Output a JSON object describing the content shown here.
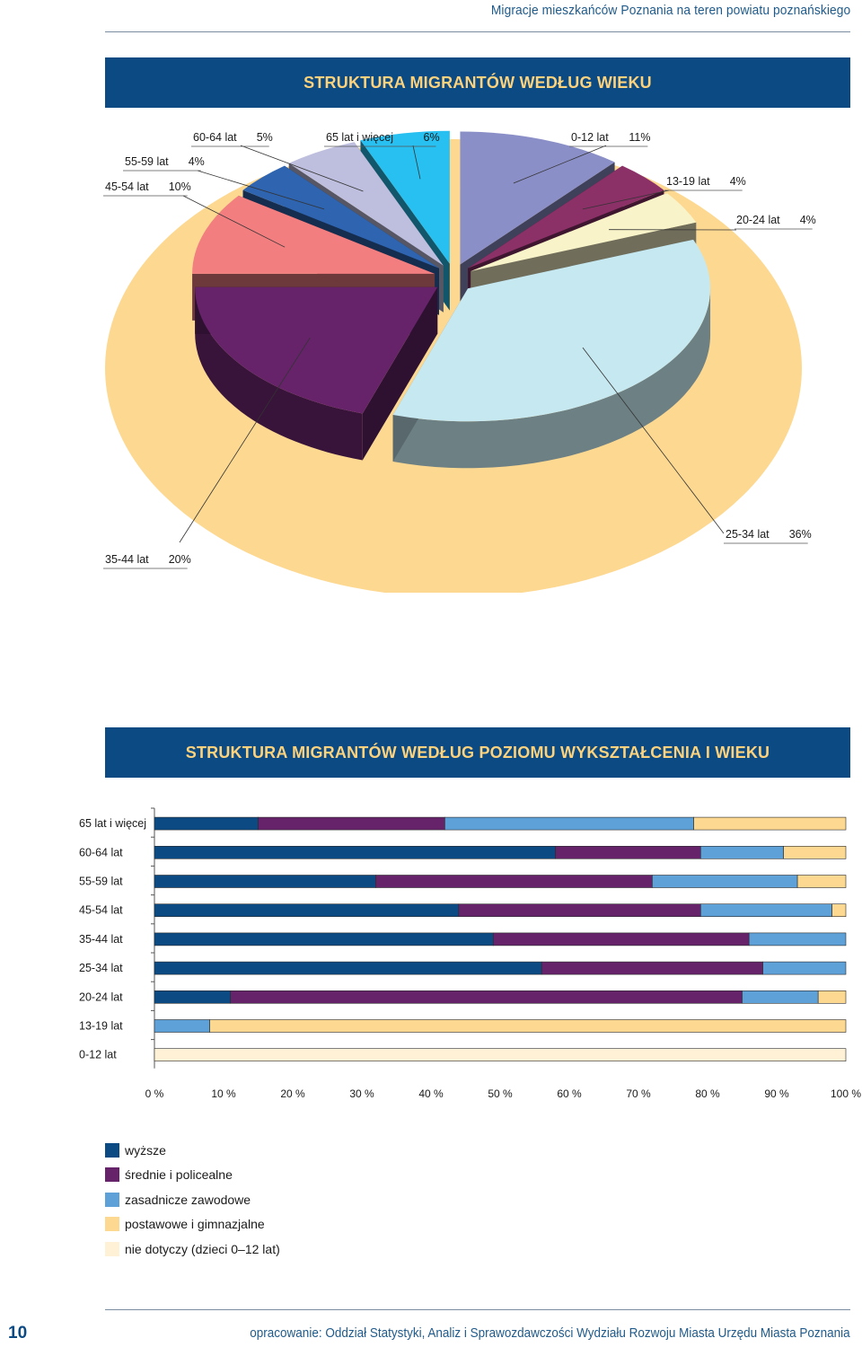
{
  "header": {
    "running_title": "Migracje mieszkańców Poznania na teren powiatu poznańskiego"
  },
  "chart_titles": {
    "pie": "STRUKTURA MIGRANTÓW WEDŁUG WIEKU",
    "bar": "STRUKTURA MIGRANTÓW WEDŁUG POZIOMU WYKSZTAŁCENIA I WIEKU"
  },
  "chart_data": [
    {
      "type": "pie",
      "title": "STRUKTURA MIGRANTÓW WEDŁUG WIEKU",
      "slices": [
        {
          "label": "0-12 lat",
          "value_label": "11%",
          "value": 11,
          "color": "#8b8fc7"
        },
        {
          "label": "13-19 lat",
          "value_label": "4%",
          "value": 4,
          "color": "#8c3068"
        },
        {
          "label": "20-24 lat",
          "value_label": "4%",
          "value": 4,
          "color": "#f8f3c8"
        },
        {
          "label": "25-34 lat",
          "value_label": "36%",
          "value": 36,
          "color": "#c6e8f0"
        },
        {
          "label": "35-44 lat",
          "value_label": "20%",
          "value": 20,
          "color": "#66236a"
        },
        {
          "label": "45-54 lat",
          "value_label": "10%",
          "value": 10,
          "color": "#f27e80"
        },
        {
          "label": "55-59 lat",
          "value_label": "4%",
          "value": 4,
          "color": "#2e64b0"
        },
        {
          "label": "60-64 lat",
          "value_label": "5%",
          "value": 5,
          "color": "#bebede"
        },
        {
          "label": "65 lat i więcej",
          "value_label": "6%",
          "value": 6,
          "color": "#28c0f0"
        }
      ],
      "background_color": "#fdd891"
    },
    {
      "type": "bar",
      "orientation": "horizontal-stacked-100",
      "title": "STRUKTURA MIGRANTÓW WEDŁUG POZIOMU WYKSZTAŁCENIA I WIEKU",
      "categories": [
        "65 lat i więcej",
        "60-64 lat",
        "55-59 lat",
        "45-54 lat",
        "35-44 lat",
        "25-34 lat",
        "20-24 lat",
        "13-19 lat",
        "0-12 lat"
      ],
      "series": [
        {
          "name": "wyższe",
          "color": "#0b4a83",
          "values": [
            15,
            58,
            32,
            44,
            49,
            56,
            11,
            0,
            0
          ]
        },
        {
          "name": "średnie i policealne",
          "color": "#66236a",
          "values": [
            27,
            21,
            40,
            35,
            37,
            32,
            74,
            0,
            0
          ]
        },
        {
          "name": "zasadnicze zawodowe",
          "color": "#5ea0d8",
          "values": [
            36,
            12,
            21,
            19,
            14,
            12,
            11,
            8,
            0
          ]
        },
        {
          "name": "postawowe i gimnazjalne",
          "color": "#fdd891",
          "values": [
            22,
            9,
            7,
            2,
            0,
            0,
            4,
            92,
            0
          ]
        },
        {
          "name": "nie dotyczy (dzieci 0–12 lat)",
          "color": "#fef1d6",
          "values": [
            0,
            0,
            0,
            0,
            0,
            0,
            0,
            0,
            100
          ]
        }
      ],
      "xlim": [
        0,
        100
      ],
      "xticks": [
        "0 %",
        "10 %",
        "20 %",
        "30 %",
        "40 %",
        "50 %",
        "60 %",
        "70 %",
        "80 %",
        "90 %",
        "100 %"
      ]
    }
  ],
  "legend": [
    {
      "label": "wyższe",
      "color": "#0b4a83"
    },
    {
      "label": "średnie i policealne",
      "color": "#66236a"
    },
    {
      "label": "zasadnicze zawodowe",
      "color": "#5ea0d8"
    },
    {
      "label": "postawowe i gimnazjalne",
      "color": "#fdd891"
    },
    {
      "label": "nie dotyczy (dzieci 0–12 lat)",
      "color": "#fef1d6"
    }
  ],
  "footer": {
    "page_number": "10",
    "credit": "opracowanie: Oddział Statystyki, Analiz i Sprawozdawczości Wydziału Rozwoju Miasta Urzędu Miasta Poznania"
  }
}
